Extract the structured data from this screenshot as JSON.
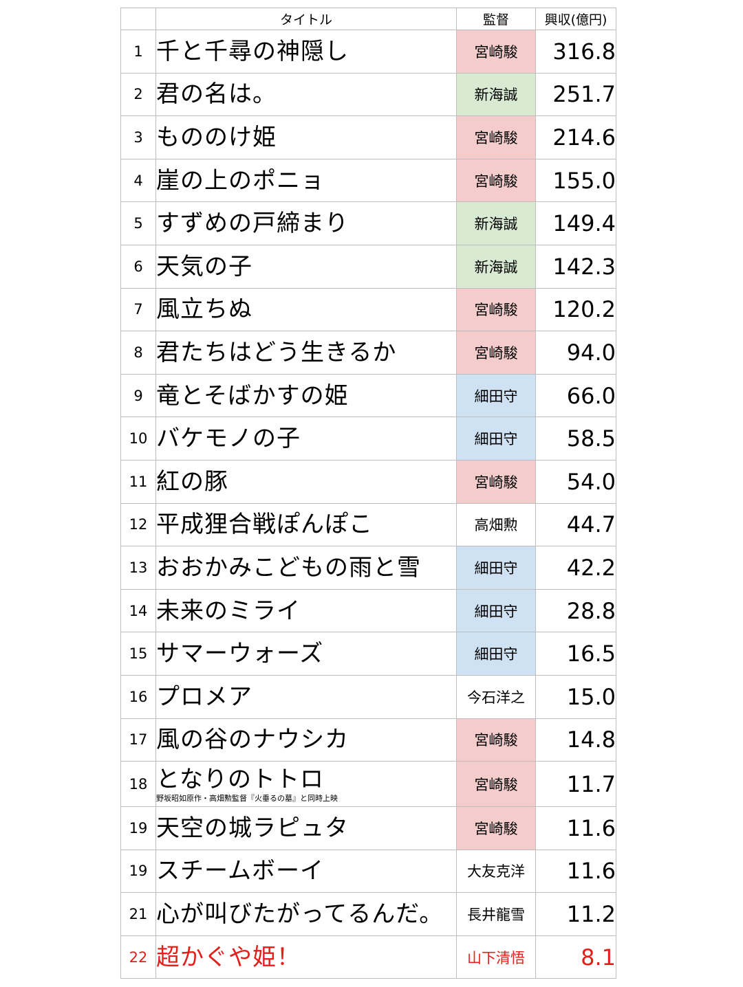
{
  "headers": {
    "rank": "",
    "title": "タイトル",
    "director": "監督",
    "gross": "興収(億円)"
  },
  "colors": {
    "miyazaki": "#f4cccc",
    "shinkai": "#d9ead3",
    "hosoda": "#cfe2f3",
    "highlight_text": "#e0201b"
  },
  "rows": [
    {
      "rank": "1",
      "title": "千と千尋の神隠し",
      "director": "宮崎駿",
      "gross": "316.8",
      "group": "miyazaki"
    },
    {
      "rank": "2",
      "title": "君の名は。",
      "director": "新海誠",
      "gross": "251.7",
      "group": "shinkai"
    },
    {
      "rank": "3",
      "title": "もののけ姫",
      "director": "宮崎駿",
      "gross": "214.6",
      "group": "miyazaki"
    },
    {
      "rank": "4",
      "title": "崖の上のポニョ",
      "director": "宮崎駿",
      "gross": "155.0",
      "group": "miyazaki"
    },
    {
      "rank": "5",
      "title": "すずめの戸締まり",
      "director": "新海誠",
      "gross": "149.4",
      "group": "shinkai"
    },
    {
      "rank": "6",
      "title": "天気の子",
      "director": "新海誠",
      "gross": "142.3",
      "group": "shinkai"
    },
    {
      "rank": "7",
      "title": "風立ちぬ",
      "director": "宮崎駿",
      "gross": "120.2",
      "group": "miyazaki"
    },
    {
      "rank": "8",
      "title": "君たちはどう生きるか",
      "director": "宮崎駿",
      "gross": "94.0",
      "group": "miyazaki"
    },
    {
      "rank": "9",
      "title": "竜とそばかすの姫",
      "director": "細田守",
      "gross": "66.0",
      "group": "hosoda"
    },
    {
      "rank": "10",
      "title": "バケモノの子",
      "director": "細田守",
      "gross": "58.5",
      "group": "hosoda"
    },
    {
      "rank": "11",
      "title": "紅の豚",
      "director": "宮崎駿",
      "gross": "54.0",
      "group": "miyazaki"
    },
    {
      "rank": "12",
      "title": "平成狸合戦ぽんぽこ",
      "director": "高畑勲",
      "gross": "44.7",
      "group": ""
    },
    {
      "rank": "13",
      "title": "おおかみこどもの雨と雪",
      "director": "細田守",
      "gross": "42.2",
      "group": "hosoda"
    },
    {
      "rank": "14",
      "title": "未来のミライ",
      "director": "細田守",
      "gross": "28.8",
      "group": "hosoda"
    },
    {
      "rank": "15",
      "title": "サマーウォーズ",
      "director": "細田守",
      "gross": "16.5",
      "group": "hosoda"
    },
    {
      "rank": "16",
      "title": "プロメア",
      "director": "今石洋之",
      "gross": "15.0",
      "group": ""
    },
    {
      "rank": "17",
      "title": "風の谷のナウシカ",
      "director": "宮崎駿",
      "gross": "14.8",
      "group": "miyazaki"
    },
    {
      "rank": "18",
      "title": "となりのトトロ",
      "note": "野坂昭如原作・高畑勲監督『火垂るの墓』と同時上映",
      "director": "宮崎駿",
      "gross": "11.7",
      "group": "miyazaki"
    },
    {
      "rank": "19",
      "title": "天空の城ラピュタ",
      "director": "宮崎駿",
      "gross": "11.6",
      "group": "miyazaki"
    },
    {
      "rank": "19",
      "title": "スチームボーイ",
      "director": "大友克洋",
      "gross": "11.6",
      "group": ""
    },
    {
      "rank": "21",
      "title": "心が叫びたがってるんだ。",
      "director": "長井龍雪",
      "gross": "11.2",
      "group": ""
    },
    {
      "rank": "22",
      "title": "超かぐや姫！",
      "director": "山下清悟",
      "gross": "8.1",
      "group": "",
      "highlight": true
    }
  ]
}
